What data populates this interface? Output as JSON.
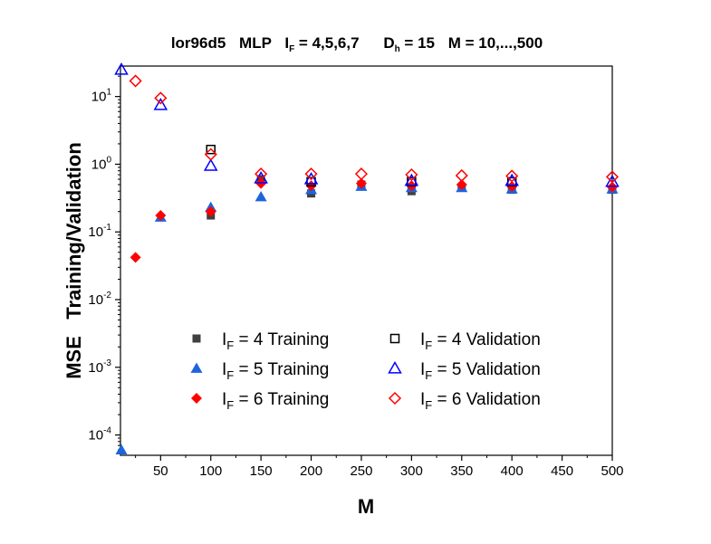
{
  "chart_data": {
    "type": "scatter",
    "title_parts": {
      "dataset": "lor96d5",
      "model": "MLP",
      "if_symbol": "I",
      "if_sub": "F",
      "if_values": " = 4,5,6,7",
      "dh_symbol": "D",
      "dh_sub": "h",
      "dh_values": " = 15",
      "m_range": "M = 10,...,500"
    },
    "xlabel": "M",
    "ylabel": "MSE   Training/Validation",
    "xlim": [
      10,
      500
    ],
    "ylim_log10": [
      -4.3,
      1.45
    ],
    "x_ticks": [
      50,
      100,
      150,
      200,
      250,
      300,
      350,
      400,
      450,
      500
    ],
    "x_tick_labels": [
      "50",
      "100",
      "150",
      "200",
      "250",
      "300",
      "350",
      "400",
      "450",
      "500"
    ],
    "y_tick_exponents": [
      -4,
      -3,
      -2,
      -1,
      0,
      1
    ],
    "y_tick_labels": [
      {
        "base": "10",
        "exp": "-4"
      },
      {
        "base": "10",
        "exp": "-3"
      },
      {
        "base": "10",
        "exp": "-2"
      },
      {
        "base": "10",
        "exp": "-1"
      },
      {
        "base": "10",
        "exp": "0"
      },
      {
        "base": "10",
        "exp": "1"
      }
    ],
    "series": [
      {
        "name": "I_F = 4  Training",
        "label_pre": "I",
        "label_sub": "F",
        "label_post": " = 4  Training",
        "marker": "square",
        "filled": true,
        "color": "#404040",
        "x": [
          100,
          150,
          200,
          250,
          300,
          350,
          400,
          500
        ],
        "y": [
          0.175,
          0.6,
          0.37,
          0.5,
          0.4,
          0.45,
          0.42,
          0.42
        ]
      },
      {
        "name": "I_F = 5  Training",
        "label_pre": "I",
        "label_sub": "F",
        "label_post": " = 5  Training",
        "marker": "triangle",
        "filled": true,
        "color": "#1e64dc",
        "x": [
          10,
          50,
          100,
          150,
          200,
          250,
          300,
          350,
          400,
          500
        ],
        "y": [
          6e-05,
          0.165,
          0.23,
          0.33,
          0.42,
          0.47,
          0.45,
          0.45,
          0.43,
          0.43
        ]
      },
      {
        "name": "I_F = 6  Training",
        "label_pre": "I",
        "label_sub": "F",
        "label_post": " = 6  Training",
        "marker": "diamond",
        "filled": true,
        "color": "#ff0000",
        "x": [
          25,
          50,
          100,
          150,
          200,
          250,
          300,
          350,
          400,
          500
        ],
        "y": [
          0.042,
          0.175,
          0.2,
          0.52,
          0.48,
          0.52,
          0.48,
          0.5,
          0.47,
          0.46
        ]
      },
      {
        "name": "I_F = 4  Validation",
        "label_pre": "I",
        "label_sub": "F",
        "label_post": " = 4  Validation",
        "marker": "square",
        "filled": false,
        "color": "#000000",
        "x": [
          100,
          200,
          300,
          400
        ],
        "y": [
          1.65,
          0.55,
          0.55,
          0.55
        ]
      },
      {
        "name": "I_F = 5  Validation",
        "label_pre": "I",
        "label_sub": "F",
        "label_post": " = 5  Validation",
        "marker": "triangle",
        "filled": false,
        "color": "#0000ff",
        "x": [
          10,
          50,
          100,
          150,
          200,
          300,
          400,
          500
        ],
        "y": [
          27,
          7.5,
          0.95,
          0.62,
          0.6,
          0.57,
          0.57,
          0.55
        ]
      },
      {
        "name": "I_F = 6  Validation",
        "label_pre": "I",
        "label_sub": "F",
        "label_post": " = 6  Validation",
        "marker": "diamond",
        "filled": false,
        "color": "#ff0000",
        "x": [
          25,
          50,
          100,
          150,
          200,
          250,
          300,
          350,
          400,
          500
        ],
        "y": [
          17,
          9.5,
          1.4,
          0.72,
          0.72,
          0.72,
          0.7,
          0.68,
          0.67,
          0.65
        ]
      }
    ],
    "legend_position": "lower-center",
    "grid": false
  }
}
